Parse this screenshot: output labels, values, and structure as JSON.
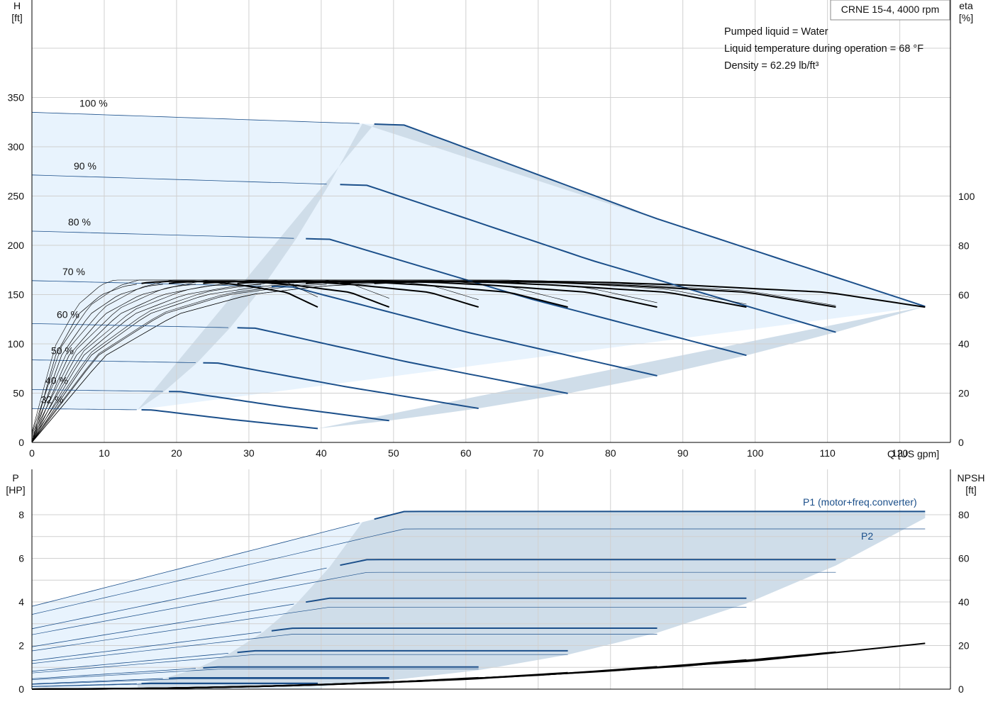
{
  "chart_data": [
    {
      "type": "line",
      "title": "CRNE 15-4, 4000 rpm",
      "xlabel": "Q [US gpm]",
      "ylabel_left_name": "H",
      "ylabel_left_unit": "[ft]",
      "ylabel_right_name": "eta",
      "ylabel_right_unit": "[%]",
      "xlim": [
        0,
        127
      ],
      "ylim_left": [
        0,
        350
      ],
      "ylim_right": [
        0,
        100
      ],
      "x_ticks": [
        0,
        10,
        20,
        30,
        40,
        50,
        60,
        70,
        80,
        90,
        100,
        110,
        120
      ],
      "y_ticks_left": [
        0,
        50,
        100,
        150,
        200,
        250,
        300,
        350
      ],
      "y_ticks_right": [
        0,
        20,
        40,
        60,
        80,
        100
      ],
      "grid": true,
      "info_lines": [
        "Pumped liquid = Water",
        "Liquid temperature during operation = 68 °F",
        "Density = 62.29 lb/ft³"
      ],
      "speed_labels": [
        "100 %",
        "90 %",
        "80 %",
        "70 %",
        "60 %",
        "50 %",
        "40 %",
        "32 %"
      ],
      "speed_fractions": [
        1.0,
        0.9,
        0.8,
        0.7,
        0.6,
        0.5,
        0.4,
        0.32
      ],
      "head_curve_100pct": {
        "q": [
          0,
          51.5,
          86,
          123.5
        ],
        "h": [
          335,
          322,
          228,
          138
        ]
      },
      "efficiency_curve_100pct": {
        "q": [
          0,
          10,
          20,
          30,
          40,
          50,
          60,
          70,
          80,
          90,
          100,
          110,
          123.5
        ],
        "eta": [
          0,
          35,
          52,
          60,
          63.5,
          65,
          65.5,
          65.5,
          65,
          64,
          62.5,
          61,
          55
        ]
      },
      "eta_max": 66
    },
    {
      "type": "line",
      "xlabel": "",
      "ylabel_left_name": "P",
      "ylabel_left_unit": "[HP]",
      "ylabel_right_name": "NPSH",
      "ylabel_right_unit": "[ft]",
      "xlim": [
        0,
        127
      ],
      "ylim_left": [
        0,
        8
      ],
      "ylim_right": [
        0,
        80
      ],
      "y_ticks_left": [
        0,
        2,
        4,
        6,
        8
      ],
      "y_ticks_right": [
        0,
        20,
        40,
        60,
        80
      ],
      "grid": true,
      "series_labels": [
        "P1 (motor+freq.converter)",
        "P2"
      ],
      "p1_max": 8.15,
      "p2_max": 7.35,
      "p1_curve_100pct": {
        "q": [
          0,
          51.5,
          86,
          123.5
        ],
        "p": [
          3.8,
          8.15,
          8.15,
          8.15
        ]
      },
      "npsh_curve_100pct": {
        "q": [
          0,
          20,
          40,
          60,
          80,
          100,
          123.5
        ],
        "npsh": [
          0,
          0.5,
          2,
          4.5,
          8.5,
          13,
          21
        ]
      }
    }
  ],
  "colors": {
    "curve_blue": "#1b4f8a",
    "curve_black": "#000000",
    "shade_light": "#e8f3fd",
    "shade_dark": "#cfdde9",
    "grid": "#d0d0d0"
  }
}
